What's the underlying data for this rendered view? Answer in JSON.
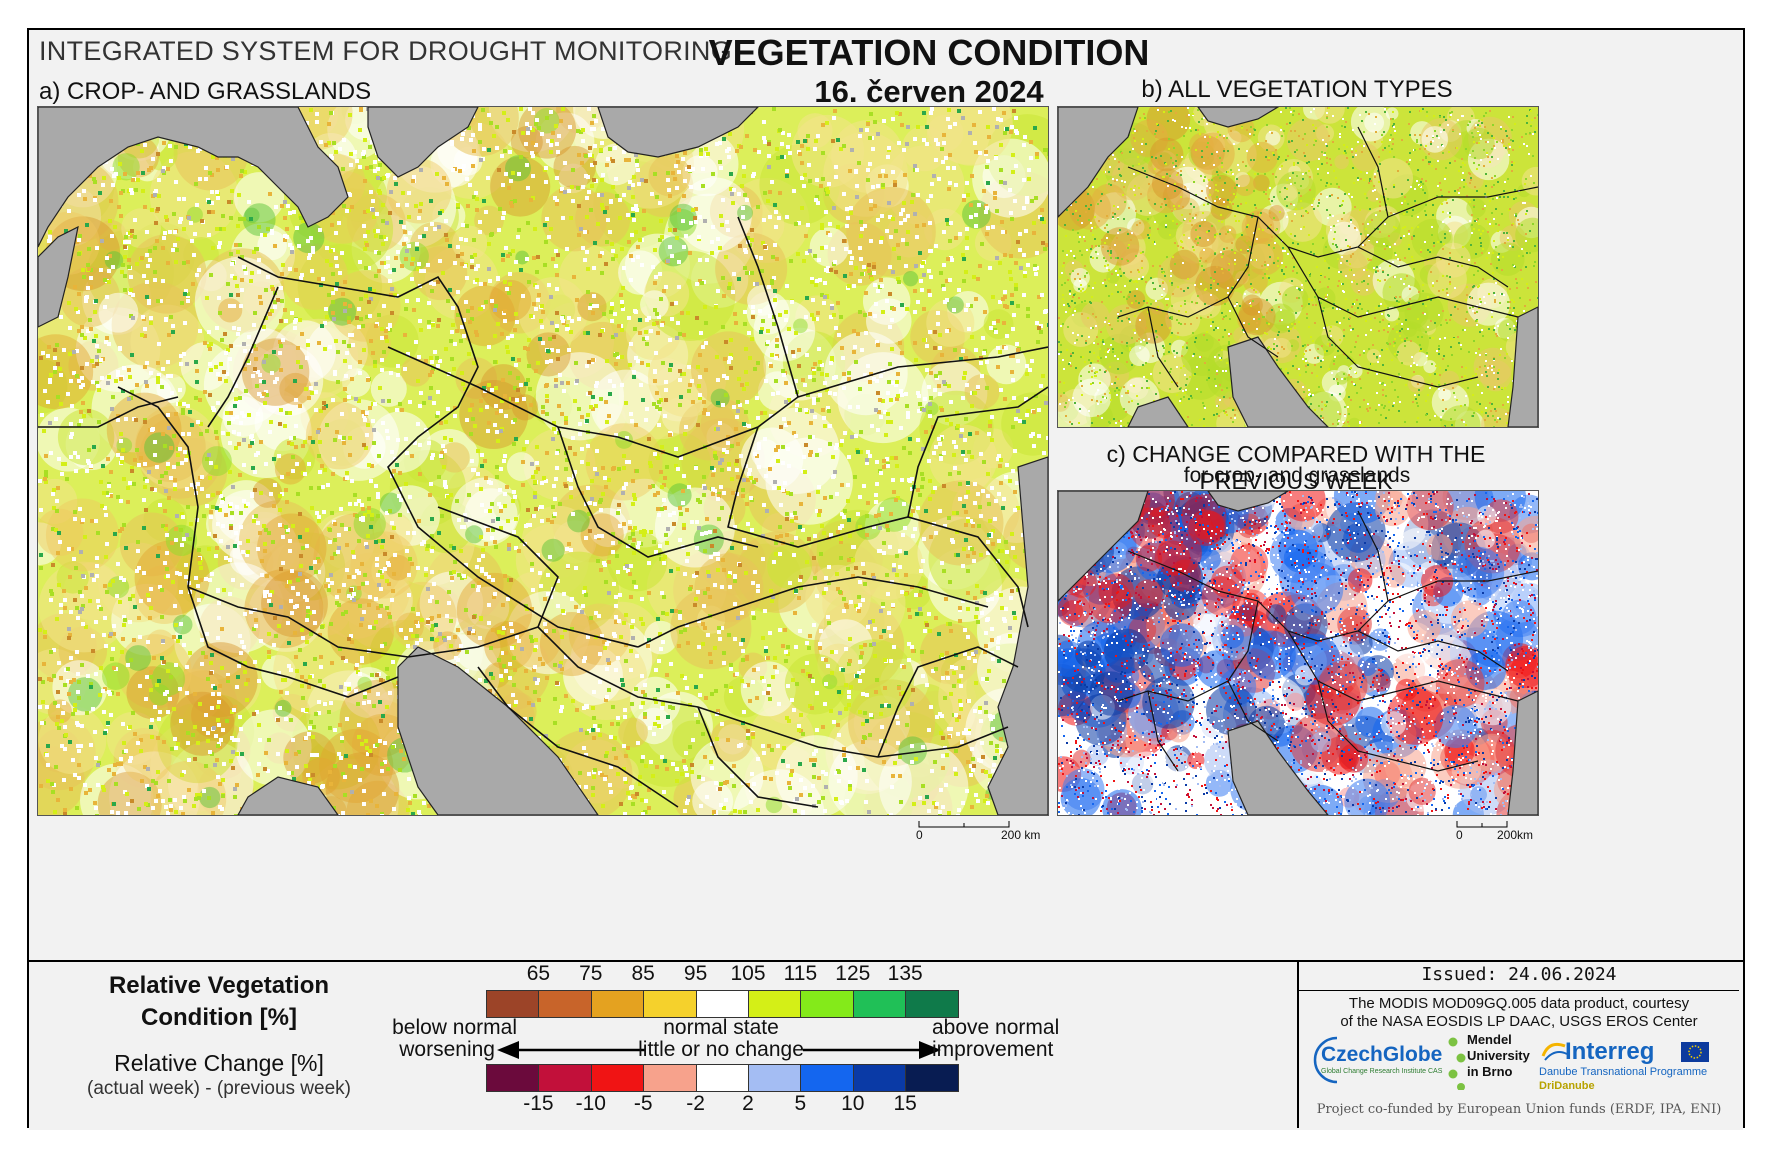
{
  "header": {
    "system_title": "INTEGRATED SYSTEM FOR DROUGHT MONITORING",
    "main_title": "VEGETATION CONDITION",
    "date": "16. červen 2024"
  },
  "panels": {
    "a": {
      "label": "a) CROP- AND GRASSLANDS",
      "scale_zero": "0",
      "scale_end": "200 km"
    },
    "b": {
      "label": "b) ALL VEGETATION TYPES"
    },
    "c": {
      "label": "c) CHANGE COMPARED WITH THE PREVIOUS WEEK",
      "sublabel": "for crop- and grasslands",
      "scale_zero": "0",
      "scale_end": "200km"
    }
  },
  "legend": {
    "rvc_title_line1": "Relative Vegetation",
    "rvc_title_line2": "Condition [%]",
    "rc_title": "Relative Change [%]",
    "rc_subtitle": "(actual week) - (previous week)",
    "below_normal": "below normal",
    "worsening": "worsening",
    "normal_state": "normal state",
    "little_change": "little or no change",
    "above_normal": "above normal",
    "improvement": "improvement",
    "rvc_ticks": [
      "65",
      "75",
      "85",
      "95",
      "105",
      "115",
      "125",
      "135"
    ],
    "rvc_colors": [
      "#9c4428",
      "#c8642a",
      "#e4a220",
      "#f5d12c",
      "#ffffff",
      "#d4ef17",
      "#84ea1a",
      "#20c057",
      "#0f7a4a"
    ],
    "rc_ticks": [
      "-15",
      "-10",
      "-5",
      "-2",
      "2",
      "5",
      "10",
      "15"
    ],
    "rc_colors": [
      "#6b0a3c",
      "#c2103a",
      "#f01414",
      "#f7a28c",
      "#ffffff",
      "#a4bdf3",
      "#1466ef",
      "#0a3aa6",
      "#081c52"
    ]
  },
  "info": {
    "issued": "Issued: 24.06.2024",
    "credit_line1": "The MODIS MOD09GQ.005 data product, courtesy",
    "credit_line2": "of the NASA EOSDIS LP DAAC, USGS EROS Center",
    "czechglobe": "CzechGlobe",
    "czechglobe_sub": "Global Change Research Institute CAS",
    "mendel_1": "Mendel",
    "mendel_2": "University",
    "mendel_3": "in Brno",
    "interreg": "Interreg",
    "interreg_sub": "Danube Transnational Programme",
    "dridanube": "DriDanube",
    "funding": "Project co-funded by European Union funds (ERDF, IPA, ENI)"
  }
}
